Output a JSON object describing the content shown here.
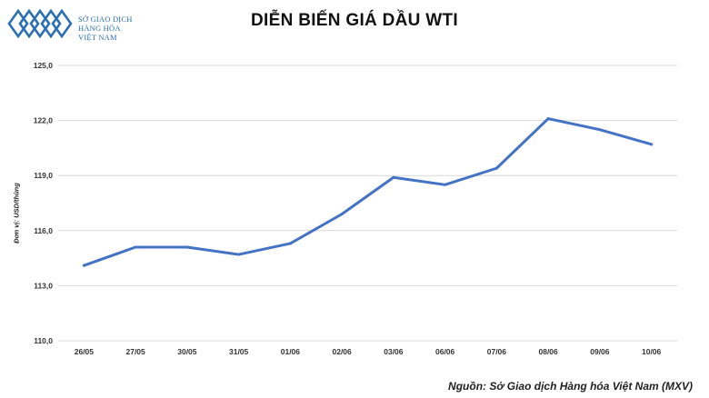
{
  "logo": {
    "line1": "SỞ GIAO DỊCH",
    "line2": "HÀNG HÓA",
    "line3": "VIỆT NAM"
  },
  "source_note": "Nguồn: Sở Giao dịch Hàng hóa Việt Nam (MXV)",
  "colors": {
    "line": "#4472c4",
    "grid": "#d9d9d9",
    "logo": "#2b6fb5"
  },
  "chart_data": {
    "type": "line",
    "title": "DIỄN BIẾN GIÁ DẦU WTI",
    "xlabel": "",
    "ylabel": "Đơn vị: USD/thùng",
    "categories": [
      "26/05",
      "27/05",
      "30/05",
      "31/05",
      "01/06",
      "02/06",
      "03/06",
      "06/06",
      "07/06",
      "08/06",
      "09/06",
      "10/06"
    ],
    "series": [
      {
        "values": [
          114.1,
          115.1,
          115.1,
          114.7,
          115.3,
          116.9,
          118.9,
          118.5,
          119.4,
          122.1,
          121.5,
          120.7
        ]
      }
    ],
    "ylim": [
      110,
      125
    ],
    "yticks": [
      "110,0",
      "113,0",
      "116,0",
      "119,0",
      "122,0",
      "125,0"
    ],
    "grid": true,
    "legend": "none"
  }
}
